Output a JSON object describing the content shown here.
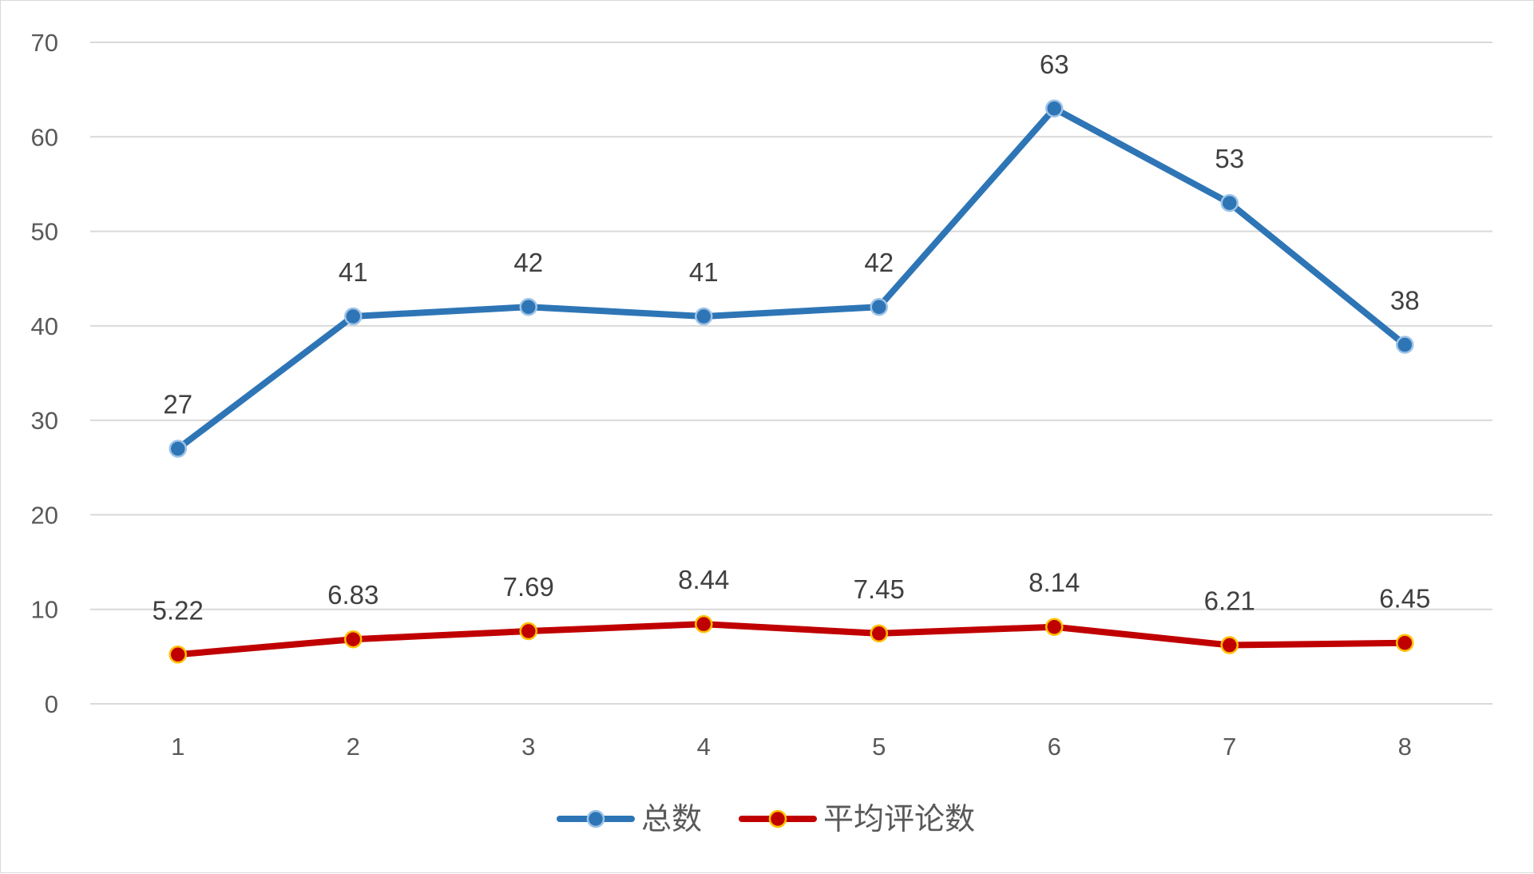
{
  "chart_data": {
    "type": "line",
    "categories": [
      "1",
      "2",
      "3",
      "4",
      "5",
      "6",
      "7",
      "8"
    ],
    "series": [
      {
        "name": "总数",
        "values": [
          27,
          41,
          42,
          41,
          42,
          63,
          53,
          38
        ],
        "labels": [
          "27",
          "41",
          "42",
          "41",
          "42",
          "63",
          "53",
          "38"
        ],
        "color": "#2e75b6",
        "marker_fill": "#2e75b6",
        "marker_stroke": "#9dc3e6"
      },
      {
        "name": "平均评论数",
        "values": [
          5.22,
          6.83,
          7.69,
          8.44,
          7.45,
          8.14,
          6.21,
          6.45
        ],
        "labels": [
          "5.22",
          "6.83",
          "7.69",
          "8.44",
          "7.45",
          "8.14",
          "6.21",
          "6.45"
        ],
        "color": "#c00000",
        "marker_fill": "#c00000",
        "marker_stroke": "#ffc000"
      }
    ],
    "ylim": [
      0,
      70
    ],
    "yticks": [
      0,
      10,
      20,
      30,
      40,
      50,
      60,
      70
    ],
    "ytick_labels": [
      "0",
      "10",
      "20",
      "30",
      "40",
      "50",
      "60",
      "70"
    ],
    "grid": true,
    "legend_position": "bottom",
    "title": "",
    "xlabel": "",
    "ylabel": ""
  }
}
